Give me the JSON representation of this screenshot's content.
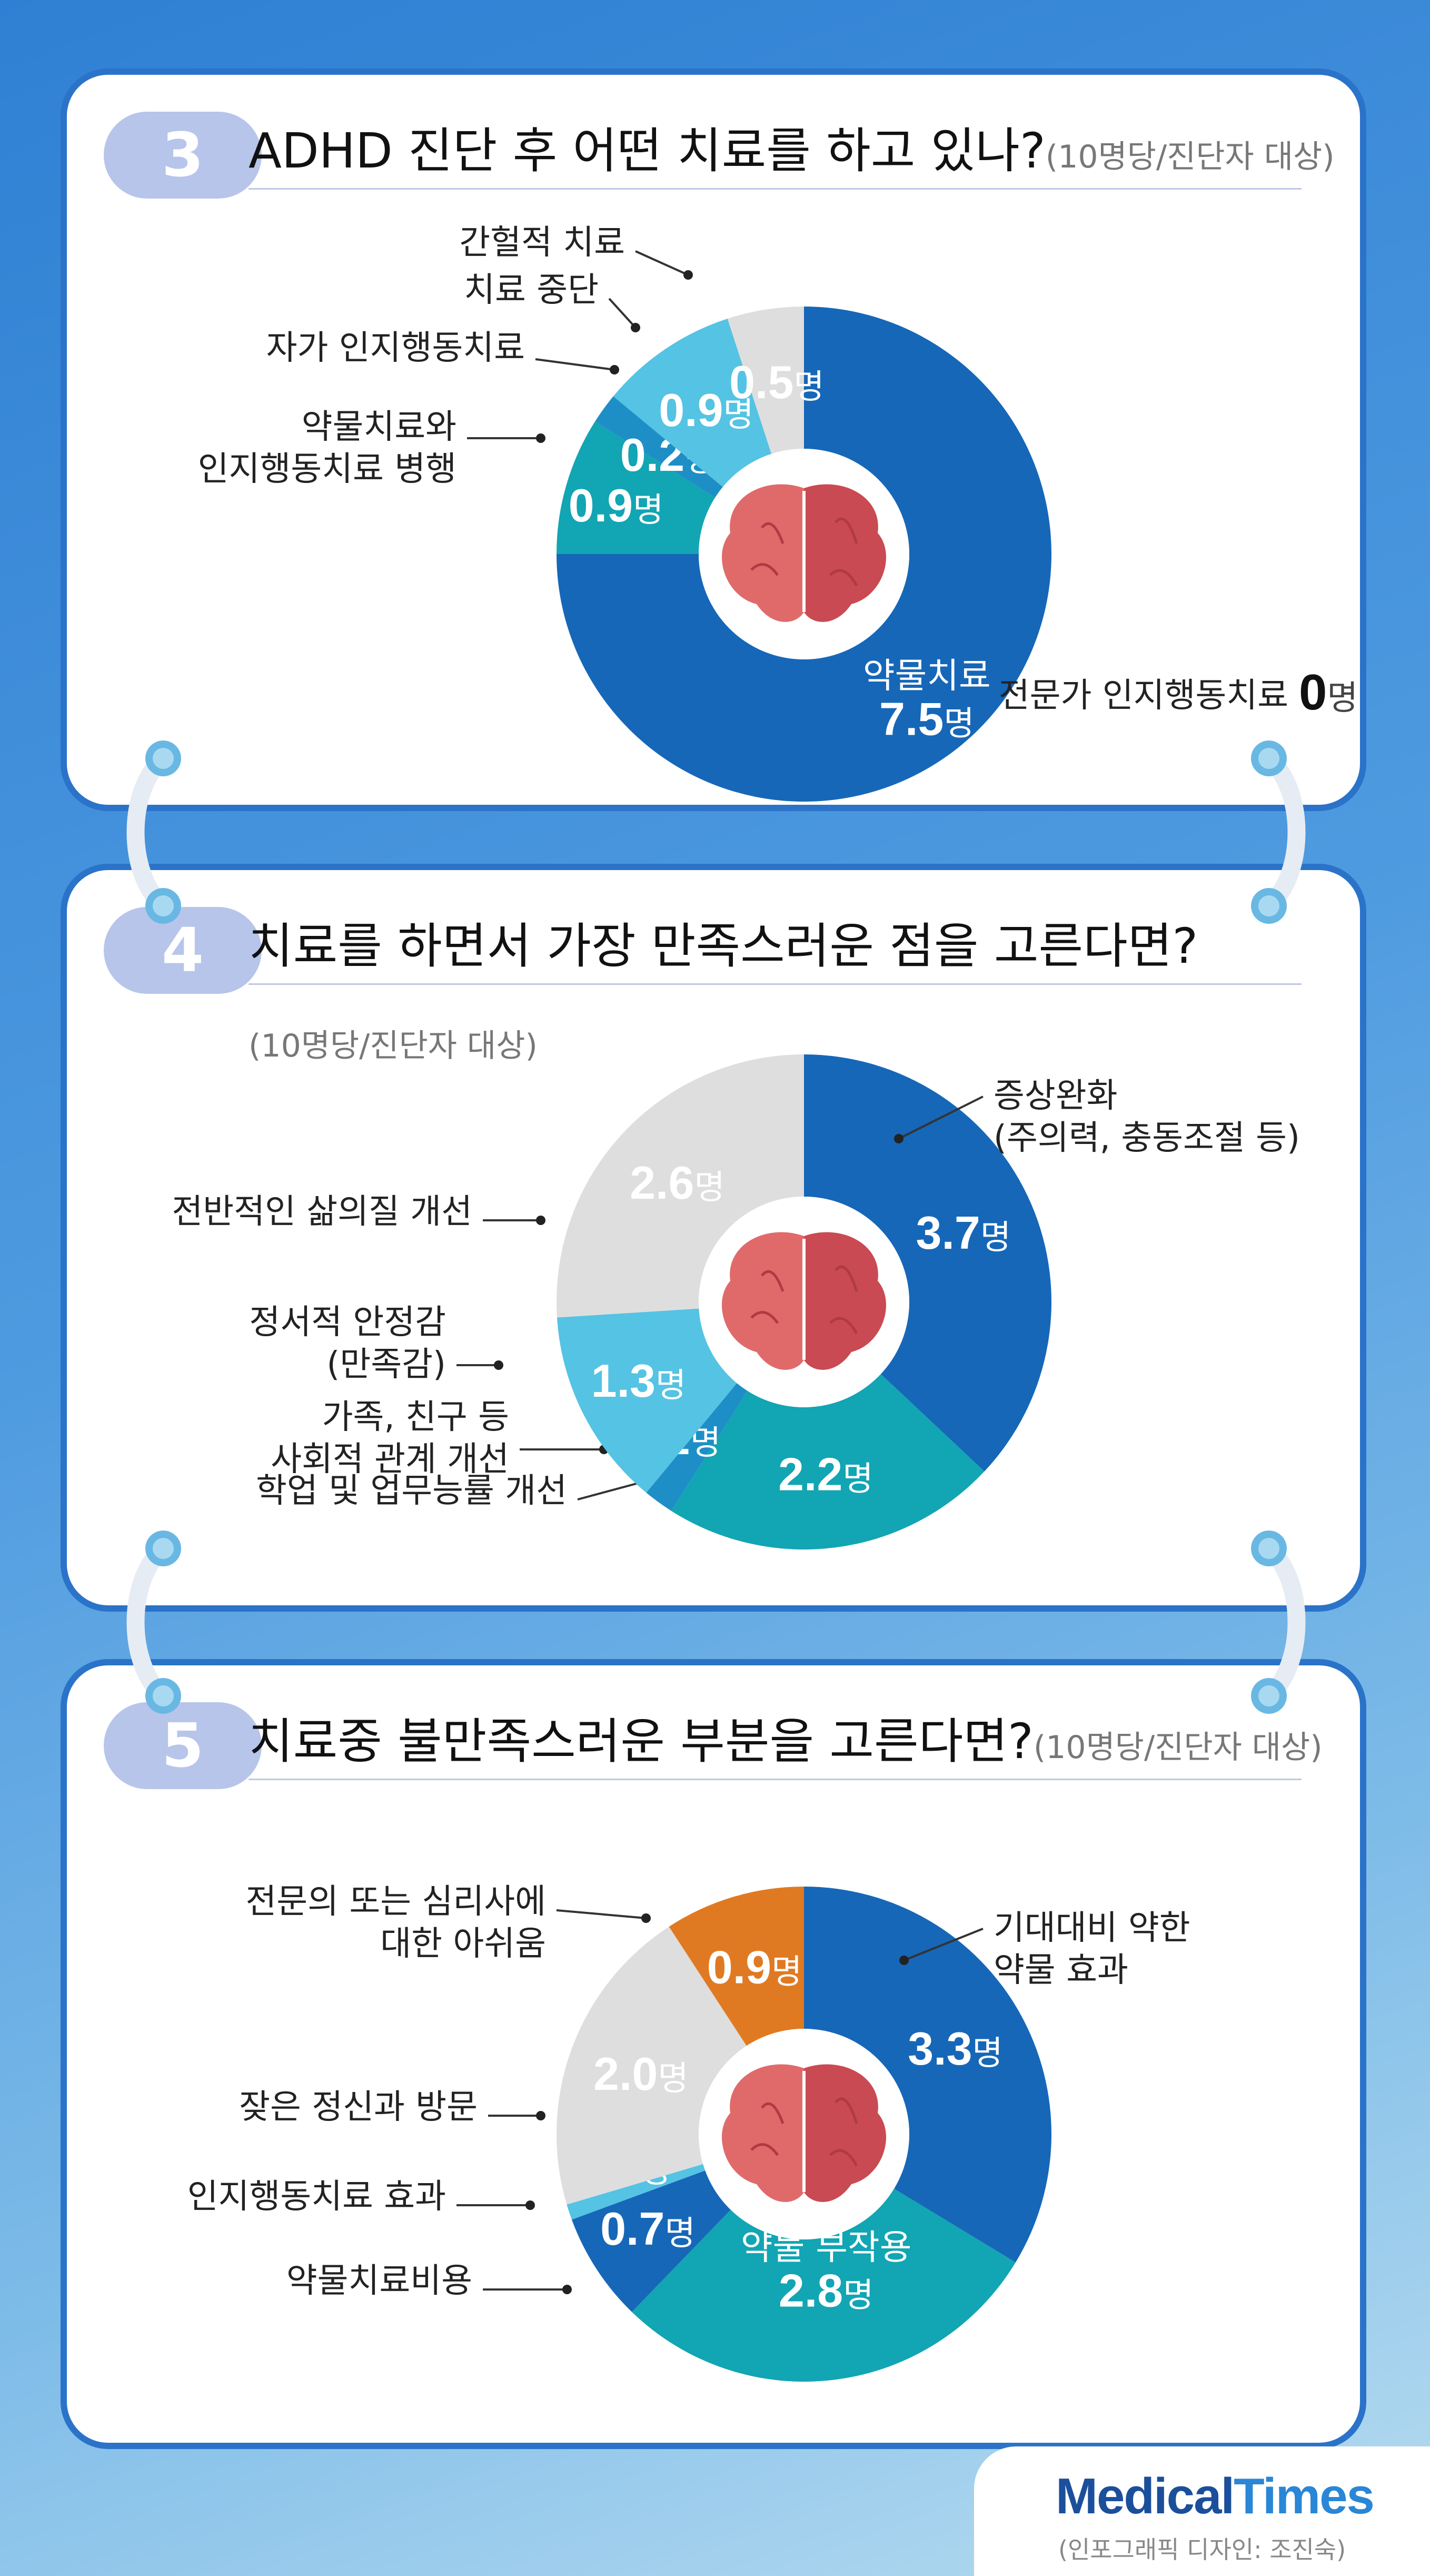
{
  "colors": {
    "dark_blue": "#1667b8",
    "teal": "#12a5b3",
    "light_blue": "#55c3e3",
    "gray": "#dedede",
    "orange": "#e07a22",
    "brain": "#e06a6a",
    "brain_dark": "#c94a52"
  },
  "footer": {
    "logo_medical": "Medical",
    "logo_times": "Times",
    "credit": "(인포그래픽 디자인: 조진숙)"
  },
  "chart_data": [
    {
      "type": "pie",
      "number": "3",
      "title": "ADHD 진단 후 어떤 치료를 하고 있나?",
      "subtitle": "(10명당/진단자 대상)",
      "unit": "명",
      "slices": [
        {
          "label": "약물치료",
          "value": 7.5,
          "value_text": "7.5",
          "color": "#1667b8"
        },
        {
          "label": "약물치료와\n인지행동치료 병행",
          "value": 0.9,
          "value_text": "0.9",
          "color": "#12a5b3"
        },
        {
          "label": "자가 인지행동치료",
          "value": 0.2,
          "value_text": "0.2",
          "color": "#1e8fc6"
        },
        {
          "label": "치료 중단",
          "value": 0.9,
          "value_text": "0.9",
          "color": "#55c3e3"
        },
        {
          "label": "간헐적 치료",
          "value": 0.5,
          "value_text": "0.5",
          "color": "#dedede"
        }
      ],
      "extra_note": {
        "label": "전문가 인지행동치료",
        "value_text": "0",
        "unit": "명"
      }
    },
    {
      "type": "pie",
      "number": "4",
      "title": "치료를 하면서 가장 만족스러운 점을 고른다면?",
      "subtitle": "(10명당/진단자 대상)",
      "unit": "명",
      "slices": [
        {
          "label": "증상완화\n(주의력, 충동조절 등)",
          "value": 3.7,
          "value_text": "3.7",
          "color": "#1667b8"
        },
        {
          "label": "학업 및 업무능률 개선",
          "value": 2.2,
          "value_text": "2.2",
          "color": "#12a5b3"
        },
        {
          "label": "가족, 친구 등\n사회적 관계 개선",
          "value": 0.2,
          "value_text": "0.2",
          "color": "#1e8fc6"
        },
        {
          "label": "정서적 안정감\n(만족감)",
          "value": 1.3,
          "value_text": "1.3",
          "color": "#55c3e3"
        },
        {
          "label": "전반적인 삶의질 개선",
          "value": 2.6,
          "value_text": "2.6",
          "color": "#dedede"
        }
      ]
    },
    {
      "type": "pie",
      "number": "5",
      "title": "치료중 불만족스러운 부분을 고른다면?",
      "subtitle": "(10명당/진단자 대상)",
      "unit": "명",
      "slices": [
        {
          "label": "기대대비 약한\n약물 효과",
          "value": 3.3,
          "value_text": "3.3",
          "color": "#1667b8"
        },
        {
          "label": "약물 부작용",
          "value": 2.8,
          "value_text": "2.8",
          "color": "#12a5b3"
        },
        {
          "label": "약물치료비용",
          "value": 0.7,
          "value_text": "0.7",
          "color": "#1667b8"
        },
        {
          "label": "인지행동치료 효과",
          "value": 0.1,
          "value_text": "0.1",
          "color": "#55c3e3"
        },
        {
          "label": "잦은 정신과 방문",
          "value": 2.0,
          "value_text": "2.0",
          "color": "#dedede"
        },
        {
          "label": "전문의 또는 심리사에\n대한 아쉬움",
          "value": 0.9,
          "value_text": "0.9",
          "color": "#e07a22"
        }
      ]
    }
  ]
}
